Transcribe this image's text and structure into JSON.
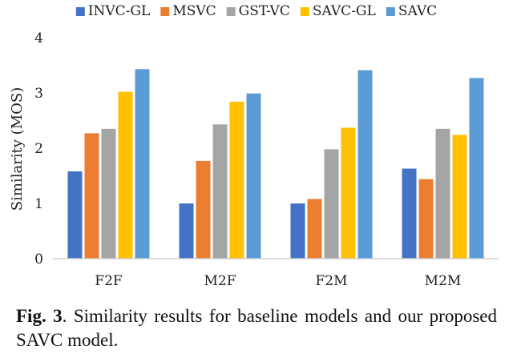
{
  "chart_data": {
    "type": "bar",
    "title": "",
    "xlabel": "",
    "ylabel": "Similarity (MOS)",
    "ylim": [
      0,
      4
    ],
    "yticks": [
      "0",
      "1",
      "2",
      "3",
      "4"
    ],
    "grid": false,
    "legend_position": "top",
    "categories": [
      "F2F",
      "M2F",
      "F2M",
      "M2M"
    ],
    "series": [
      {
        "name": "INVC-GL",
        "color": "#4472C4",
        "values": [
          1.58,
          1.0,
          1.0,
          1.63
        ]
      },
      {
        "name": "MSVC",
        "color": "#ED7D31",
        "values": [
          2.27,
          1.77,
          1.08,
          1.44
        ]
      },
      {
        "name": "GST-VC",
        "color": "#A5A5A5",
        "values": [
          2.35,
          2.43,
          1.98,
          2.35
        ]
      },
      {
        "name": "SAVC-GL",
        "color": "#FFC000",
        "values": [
          3.02,
          2.84,
          2.37,
          2.24
        ]
      },
      {
        "name": "SAVC",
        "color": "#5B9BD5",
        "values": [
          3.43,
          2.99,
          3.41,
          3.27
        ]
      }
    ]
  },
  "caption": {
    "label": "Fig. 3",
    "text": ".  Similarity results for baseline models and our proposed SAVC model."
  }
}
